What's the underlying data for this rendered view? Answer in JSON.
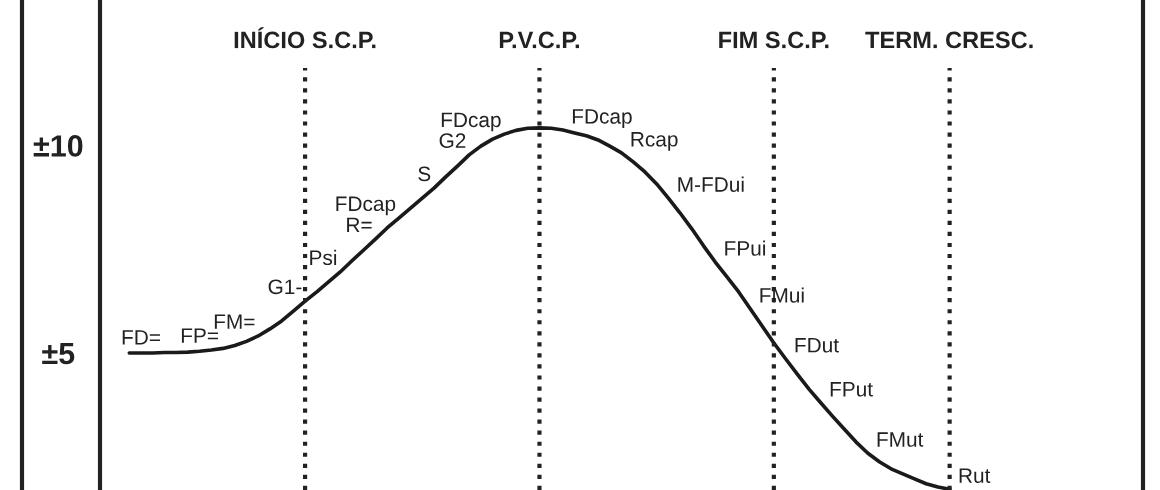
{
  "chart_data": {
    "type": "line",
    "categories": [
      null,
      null,
      null,
      null,
      null,
      null,
      null,
      null,
      null,
      null,
      null,
      null,
      null,
      null,
      null,
      null,
      null,
      "INÍCIO S.C.P.",
      null,
      null,
      null,
      null,
      null,
      null,
      null,
      null,
      null,
      null,
      null,
      null,
      null,
      null,
      null,
      null,
      null,
      null,
      null,
      "P.V.C.P.",
      null,
      null,
      null,
      null,
      null,
      null,
      null,
      null,
      null,
      null,
      null,
      null,
      null,
      null,
      null,
      null,
      null,
      null,
      null,
      "FIM S.C.P.",
      null,
      null,
      null,
      null,
      null,
      null,
      null,
      null,
      null,
      null,
      null,
      null,
      null,
      null,
      "TERM. CRESC.",
      null,
      null,
      null,
      null,
      null,
      null,
      null,
      null,
      null,
      null,
      null,
      null,
      null,
      null,
      null,
      null
    ],
    "series": [
      {
        "color": "#1a1a1a",
        "values": [
          null,
          null,
          5.0,
          5.0,
          5.0,
          5.01,
          5.01,
          5.02,
          5.04,
          5.07,
          5.11,
          5.18,
          5.28,
          5.41,
          5.58,
          5.77,
          6.01,
          6.25,
          6.47,
          6.71,
          6.95,
          7.22,
          7.48,
          7.74,
          8.01,
          8.25,
          8.49,
          8.73,
          8.97,
          9.24,
          9.5,
          9.77,
          9.98,
          10.15,
          10.27,
          10.36,
          10.41,
          10.42,
          10.41,
          10.37,
          10.3,
          10.23,
          10.13,
          9.98,
          9.82,
          9.6,
          9.36,
          9.07,
          8.73,
          8.37,
          7.99,
          7.58,
          7.19,
          6.83,
          6.47,
          6.06,
          5.65,
          5.24,
          4.86,
          4.49,
          4.13,
          3.8,
          3.48,
          3.17,
          2.86,
          2.59,
          2.38,
          2.21,
          2.09,
          1.97,
          1.85,
          1.77,
          1.72,
          null,
          null,
          null,
          null,
          null,
          null,
          null,
          null,
          null,
          null,
          null,
          null,
          null,
          null,
          null,
          null
        ],
        "value_labels": [
          null,
          null,
          null,
          "FD=",
          null,
          null,
          null,
          null,
          "FP=",
          null,
          null,
          null,
          null,
          "FM=",
          null,
          null,
          null,
          "G1-",
          null,
          null,
          "Psi",
          null,
          null,
          "R=",
          null,
          "FDcap",
          null,
          null,
          "S",
          null,
          null,
          "G2",
          null,
          null,
          "FDcap",
          null,
          null,
          null,
          null,
          "FDcap",
          null,
          null,
          null,
          null,
          "Rcap",
          null,
          null,
          null,
          "M-FDui",
          null,
          null,
          null,
          "FPui",
          null,
          null,
          "FMui",
          null,
          null,
          "FDut",
          null,
          null,
          "FPut",
          null,
          null,
          null,
          "FMut",
          null,
          null,
          null,
          null,
          null,
          null,
          "Rut",
          null,
          null,
          null,
          null,
          null,
          null,
          null,
          null,
          null,
          null,
          null,
          null,
          null,
          null,
          null,
          null
        ]
      }
    ],
    "ylim": [
      1.7,
      13.5
    ],
    "yticks": [
      {
        "value": 10,
        "label": "±10"
      },
      {
        "value": 5,
        "label": "±5"
      }
    ],
    "grid": "x"
  }
}
